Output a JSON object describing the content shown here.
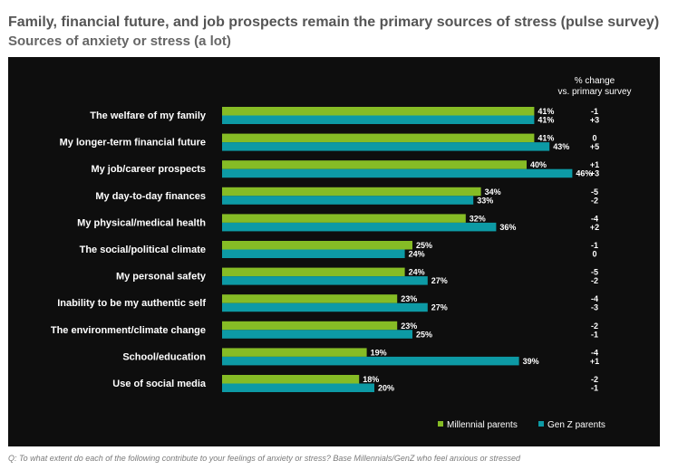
{
  "chart_data": {
    "type": "bar",
    "orientation": "horizontal",
    "title": "Family, financial future, and job prospects remain the primary sources of stress (pulse survey)",
    "subtitle": "Sources of anxiety or stress (a lot)",
    "change_header": [
      "% change",
      "vs. primary survey"
    ],
    "categories": [
      "The welfare of my family",
      "My longer-term financial future",
      "My job/career prospects",
      "My day-to-day finances",
      "My physical/medical health",
      "The social/political climate",
      "My personal safety",
      "Inability to be my authentic self",
      "The environment/climate change",
      "School/education",
      "Use of social media"
    ],
    "series": [
      {
        "name": "Millennial parents",
        "color": "#86bc25",
        "values": [
          41,
          41,
          40,
          34,
          32,
          25,
          24,
          23,
          23,
          19,
          18
        ],
        "change": [
          "-1",
          "0",
          "+1",
          "-5",
          "-4",
          "-1",
          "-5",
          "-4",
          "-2",
          "-4",
          "-2"
        ]
      },
      {
        "name": "Gen Z parents",
        "color": "#0d9aa5",
        "values": [
          41,
          43,
          46,
          33,
          36,
          24,
          27,
          27,
          25,
          39,
          20
        ],
        "change": [
          "+3",
          "+5",
          "+3",
          "-2",
          "+2",
          "0",
          "-2",
          "-3",
          "-1",
          "+1",
          "-1"
        ]
      }
    ],
    "value_suffix": "%",
    "xlim": [
      0,
      46
    ],
    "legend_position": "bottom-right"
  },
  "footnote": "Q: To what extent do each of the following contribute to your feelings of anxiety or stress? Base Millennials/GenZ who feel anxious or stressed"
}
